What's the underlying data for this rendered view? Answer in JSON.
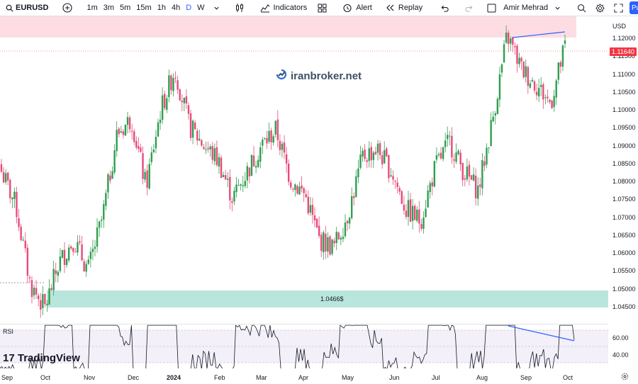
{
  "toolbar": {
    "symbol": "EURUSD",
    "timeframes": [
      "1m",
      "3m",
      "5m",
      "15m",
      "1h",
      "4h",
      "D",
      "W"
    ],
    "active_timeframe": "D",
    "indicators_label": "Indicators",
    "alert_label": "Alert",
    "replay_label": "Replay",
    "user_name": "Amir Mehrad",
    "publish_label": "Pu"
  },
  "price_axis": {
    "currency": "USD",
    "ticks": [
      "1.12000",
      "1.11500",
      "1.11000",
      "1.10500",
      "1.10000",
      "1.09500",
      "1.09000",
      "1.08500",
      "1.08000",
      "1.07500",
      "1.07000",
      "1.06500",
      "1.06000",
      "1.05500",
      "1.05000",
      "1.04500"
    ],
    "current_price": "1.11640",
    "rsi_ticks": [
      "60.00",
      "40.00"
    ]
  },
  "time_axis": [
    "Sep",
    "Oct",
    "Nov",
    "Dec",
    "2024",
    "Feb",
    "Mar",
    "Apr",
    "May",
    "Jun",
    "Jul",
    "Aug",
    "Sep",
    "Oct"
  ],
  "annotations": {
    "watermark": "iranbroker.net",
    "support_label": "1.0466$",
    "rsi_label": "RSI",
    "brand": "TradingView"
  },
  "colors": {
    "up": "#26a69a",
    "down": "#ef5350",
    "bull_candle": "#2e9e4f",
    "bear_candle": "#e84a7a",
    "resistance_zone": "#fddde3",
    "support_zone": "#b9e6dc",
    "trendline": "#2962ff",
    "current_price": "#f23645"
  },
  "chart_data": {
    "type": "candlestick",
    "symbol": "EURUSD",
    "interval": "D",
    "ylim": [
      1.043,
      1.124
    ],
    "close_path": [
      {
        "x": "Sep",
        "y": 1.083
      },
      {
        "x": "Sep",
        "y": 1.074
      },
      {
        "x": "Oct",
        "y": 1.053
      },
      {
        "x": "Oct",
        "y": 1.047
      },
      {
        "x": "Oct",
        "y": 1.059
      },
      {
        "x": "Nov",
        "y": 1.065
      },
      {
        "x": "Nov",
        "y": 1.057
      },
      {
        "x": "Nov",
        "y": 1.071
      },
      {
        "x": "Nov",
        "y": 1.093
      },
      {
        "x": "Dec",
        "y": 1.097
      },
      {
        "x": "Dec",
        "y": 1.079
      },
      {
        "x": "Dec",
        "y": 1.099
      },
      {
        "x": "2024",
        "y": 1.11
      },
      {
        "x": "2024",
        "y": 1.095
      },
      {
        "x": "2024",
        "y": 1.09
      },
      {
        "x": "Feb",
        "y": 1.086
      },
      {
        "x": "Feb",
        "y": 1.076
      },
      {
        "x": "Feb",
        "y": 1.083
      },
      {
        "x": "Mar",
        "y": 1.09
      },
      {
        "x": "Mar",
        "y": 1.094
      },
      {
        "x": "Mar",
        "y": 1.081
      },
      {
        "x": "Apr",
        "y": 1.077
      },
      {
        "x": "Apr",
        "y": 1.065
      },
      {
        "x": "Apr",
        "y": 1.063
      },
      {
        "x": "May",
        "y": 1.072
      },
      {
        "x": "May",
        "y": 1.087
      },
      {
        "x": "May",
        "y": 1.089
      },
      {
        "x": "Jun",
        "y": 1.083
      },
      {
        "x": "Jun",
        "y": 1.073
      },
      {
        "x": "Jun",
        "y": 1.07
      },
      {
        "x": "Jul",
        "y": 1.084
      },
      {
        "x": "Jul",
        "y": 1.091
      },
      {
        "x": "Jul",
        "y": 1.083
      },
      {
        "x": "Aug",
        "y": 1.078
      },
      {
        "x": "Aug",
        "y": 1.097
      },
      {
        "x": "Aug",
        "y": 1.119
      },
      {
        "x": "Aug",
        "y": 1.11
      },
      {
        "x": "Sep",
        "y": 1.106
      },
      {
        "x": "Sep",
        "y": 1.101
      },
      {
        "x": "Sep",
        "y": 1.116
      }
    ]
  }
}
